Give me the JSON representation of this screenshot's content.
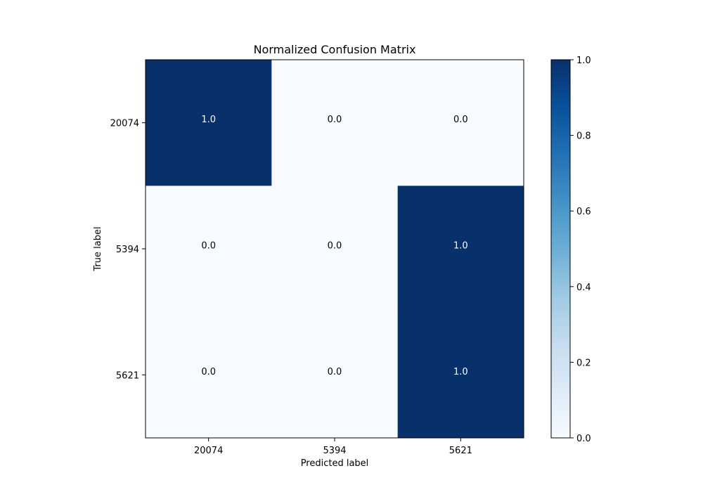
{
  "chart_data": {
    "type": "heatmap",
    "title": "Normalized Confusion Matrix",
    "xlabel": "Predicted label",
    "ylabel": "True label",
    "x_categories": [
      "20074",
      "5394",
      "5621"
    ],
    "y_categories": [
      "20074",
      "5394",
      "5621"
    ],
    "values": [
      [
        1.0,
        0.0,
        0.0
      ],
      [
        0.0,
        0.0,
        1.0
      ],
      [
        0.0,
        0.0,
        1.0
      ]
    ],
    "cell_labels": [
      [
        "1.0",
        "0.0",
        "0.0"
      ],
      [
        "0.0",
        "0.0",
        "1.0"
      ],
      [
        "0.0",
        "0.0",
        "1.0"
      ]
    ],
    "colormap": "Blues",
    "colorbar": {
      "range": [
        0.0,
        1.0
      ],
      "ticks": [
        "0.0",
        "0.2",
        "0.4",
        "0.6",
        "0.8",
        "1.0"
      ]
    },
    "colors": {
      "low": "#f7fbff",
      "high": "#08306b",
      "text_on_dark": "#ffffff",
      "text_on_light": "#000000"
    },
    "grid": false
  }
}
